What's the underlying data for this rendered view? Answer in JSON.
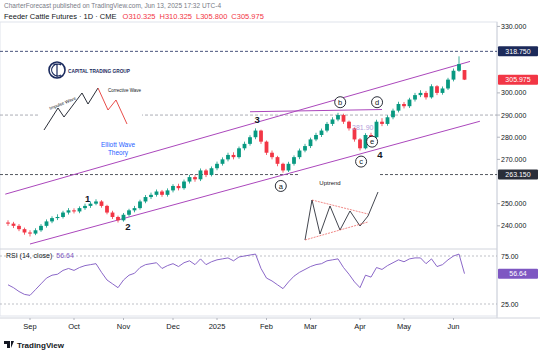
{
  "header": {
    "publisher": "CharterForecast published on TradingView.com, Jun 13, 2025 17:32 UTC-4",
    "brand": "TradingView"
  },
  "insets": {
    "logo": "CAPITAL TRADING GROUP",
    "elliott": {
      "impulse": "Impulse Wave",
      "corrective": "Corrective Wave",
      "caption": [
        "Elliott Wave",
        "Theory"
      ]
    },
    "uptrend": {
      "title": "Uptrend"
    }
  },
  "chart_data": [
    {
      "type": "candlestick",
      "title": "Feeder Cattle Futures · 1D · CME",
      "ohlc_text": [
        "O310.325",
        "H310.325",
        "L305.800",
        "C305.975"
      ],
      "categories": [
        null,
        null,
        null,
        null,
        "Sep",
        null,
        null,
        null,
        null,
        null,
        null,
        null,
        "Oct",
        null,
        null,
        null,
        null,
        null,
        null,
        null,
        null,
        "Nov",
        null,
        null,
        null,
        null,
        null,
        null,
        null,
        null,
        "Dec",
        null,
        null,
        null,
        null,
        null,
        null,
        null,
        "2025",
        null,
        null,
        null,
        null,
        null,
        null,
        null,
        null,
        "Feb",
        null,
        null,
        null,
        null,
        null,
        null,
        null,
        "Mar",
        null,
        null,
        null,
        null,
        null,
        null,
        null,
        null,
        "Apr",
        null,
        null,
        null,
        null,
        null,
        null,
        null,
        "May",
        null,
        null,
        null,
        null,
        null,
        null,
        null,
        null,
        "Jun",
        null,
        null
      ],
      "open": [
        241.5,
        241,
        240,
        238.5,
        237,
        236.5,
        238,
        240,
        242,
        243.5,
        244,
        246,
        247,
        246.5,
        248,
        249,
        250,
        251,
        249,
        246,
        244,
        242.5,
        245,
        247,
        248,
        251,
        253,
        254,
        255.5,
        254,
        256,
        258,
        257,
        260,
        262,
        261,
        265,
        263,
        266,
        268,
        270,
        272,
        271,
        275,
        277,
        280,
        283,
        278,
        273,
        271,
        268,
        265,
        268,
        271,
        274,
        276,
        279,
        281,
        283,
        286,
        288,
        290,
        287,
        284,
        279,
        275,
        281,
        280,
        287,
        286,
        289,
        292,
        295,
        294,
        297,
        299,
        300,
        298,
        303,
        300,
        302,
        306,
        310,
        310.325
      ],
      "high": [
        242.5,
        241.8,
        240.8,
        239.2,
        238,
        238.9,
        240.8,
        242.9,
        244.3,
        245.2,
        246.8,
        248,
        247.9,
        248.8,
        250,
        250.9,
        252,
        251.6,
        249.5,
        246.8,
        244.6,
        245.8,
        247.7,
        249,
        251.8,
        253.9,
        255,
        256.4,
        256.2,
        256.9,
        258.8,
        259,
        260.9,
        263,
        262.8,
        265.9,
        265.7,
        266.8,
        269,
        270.9,
        273,
        273.2,
        275.8,
        278,
        280.9,
        284,
        283.4,
        278.5,
        274,
        271.6,
        268.5,
        268.9,
        271.8,
        274.9,
        277,
        279.8,
        282,
        283.9,
        286.9,
        289,
        291,
        290.6,
        287.5,
        284.4,
        279.6,
        281.8,
        282,
        287.9,
        288.6,
        289.9,
        292.9,
        296,
        295.9,
        297.8,
        300,
        301.2,
        300.9,
        303.9,
        303.5,
        302.9,
        306.8,
        311,
        316.5,
        310.325
      ],
      "low": [
        240,
        239,
        237.6,
        236,
        235.2,
        235.8,
        237.3,
        239.2,
        241.2,
        242.6,
        243.3,
        245.1,
        245.6,
        245.7,
        247.2,
        248.1,
        249.3,
        248.2,
        245.2,
        243.1,
        241.5,
        241.9,
        244.2,
        246.1,
        247.3,
        250.2,
        252.1,
        253.2,
        253.1,
        253.2,
        255.1,
        256,
        256.3,
        259.1,
        259.9,
        260.2,
        262,
        262.3,
        265.1,
        267.2,
        269.1,
        270,
        270.3,
        274.1,
        276.2,
        279.1,
        277,
        272,
        270,
        266.9,
        264,
        264.3,
        267.2,
        270.1,
        273.2,
        275.1,
        278.2,
        280.1,
        282.2,
        285.1,
        287.2,
        286,
        283,
        278,
        274,
        274.5,
        278.8,
        279.4,
        285,
        285.2,
        288.1,
        291.2,
        293,
        293.2,
        296.1,
        298.1,
        297,
        297.4,
        299,
        299.2,
        301.3,
        305.2,
        309.5,
        305.8
      ],
      "close": [
        241,
        240,
        238.5,
        237,
        236.5,
        238,
        240,
        242,
        243.5,
        244,
        246,
        247,
        246.5,
        248,
        249,
        250,
        251,
        249,
        246,
        244,
        242.5,
        245,
        247,
        248,
        251,
        253,
        254,
        255.5,
        254,
        256,
        258,
        257,
        260,
        262,
        261,
        265,
        263,
        266,
        268,
        270,
        272,
        271,
        275,
        277,
        280,
        283,
        278,
        273,
        271,
        268,
        265,
        268,
        271,
        274,
        276,
        279,
        281,
        283,
        286,
        288,
        290,
        287,
        284,
        279,
        275,
        281,
        280,
        287,
        286,
        289,
        292,
        295,
        294,
        297,
        299,
        300,
        298,
        303,
        300,
        302,
        306,
        310,
        313,
        305.975
      ],
      "ylim": [
        230,
        332
      ],
      "yticks": [
        {
          "value": 240,
          "label": "240.000"
        },
        {
          "value": 250,
          "label": "250.000"
        },
        {
          "value": 270,
          "label": "270.000"
        },
        {
          "value": 280,
          "label": "280.000"
        },
        {
          "value": 290,
          "label": "290.000"
        },
        {
          "value": 300,
          "label": "300.000"
        },
        {
          "value": 330,
          "label": "330.000"
        }
      ],
      "grid": false,
      "levels": [
        {
          "value": 318.75,
          "label": "318.750",
          "color": "#1c2a5a"
        },
        {
          "value": 263.15,
          "label": "263.150",
          "color": "#2a2e39"
        },
        {
          "value": 290,
          "color": "#9598a1"
        }
      ],
      "lines": [
        {
          "x": [
            -0.5,
            84
          ],
          "y": [
            254.3,
            314.2
          ],
          "color": "#ab47bc"
        },
        {
          "x": [
            4,
            85.8
          ],
          "y": [
            231.8,
            287.2
          ],
          "color": "#ab47bc"
        },
        {
          "x": [
            44,
            68
          ],
          "y": [
            291.5,
            292.5
          ],
          "color": "#ab47bc"
        }
      ],
      "annotations": [
        {
          "text": "1",
          "x": 14.5,
          "y": 252.5
        },
        {
          "text": "2",
          "x": 21.8,
          "y": 239.5
        },
        {
          "text": "3",
          "x": 45.3,
          "y": 288
        },
        {
          "text": "4",
          "x": 67.6,
          "y": 272
        },
        {
          "text": "a",
          "x": 49.6,
          "y": 258,
          "marker": "circle"
        },
        {
          "text": "b",
          "x": 60.4,
          "y": 295.8,
          "marker": "circle"
        },
        {
          "text": "c",
          "x": 64.2,
          "y": 269,
          "marker": "circle"
        },
        {
          "text": "d",
          "x": 67.1,
          "y": 295.8,
          "marker": "circle"
        },
        {
          "text": "e",
          "x": 66.2,
          "y": 278,
          "marker": "circle"
        },
        {
          "text": "281.90",
          "x": 64.5,
          "y": 284.5,
          "color": "#b39ddb"
        }
      ]
    },
    {
      "type": "line",
      "series": [
        {
          "name": "RSI (14, close)",
          "color": "#7e57c2",
          "values": [
            45,
            42,
            38,
            35,
            34,
            40,
            46,
            52,
            55,
            56,
            60,
            62,
            60,
            63,
            65,
            66,
            67,
            58,
            50,
            46,
            42,
            50,
            55,
            57,
            63,
            66,
            67,
            68,
            62,
            65,
            67,
            64,
            68,
            70,
            66,
            72,
            66,
            69,
            71,
            72,
            73,
            70,
            74,
            75,
            76,
            77,
            62,
            52,
            49,
            45,
            41,
            48,
            54,
            58,
            61,
            64,
            66,
            67,
            70,
            71,
            72,
            63,
            56,
            48,
            42,
            55,
            53,
            63,
            61,
            65,
            68,
            71,
            69,
            72,
            73,
            73,
            67,
            72,
            64,
            66,
            71,
            75,
            77,
            56.64
          ]
        }
      ],
      "ylim": [
        12.5,
        81.25
      ],
      "yticks": [
        {
          "value": 25,
          "label": "25.00"
        },
        {
          "value": 75,
          "label": "75.00"
        }
      ],
      "grid": true
    }
  ]
}
